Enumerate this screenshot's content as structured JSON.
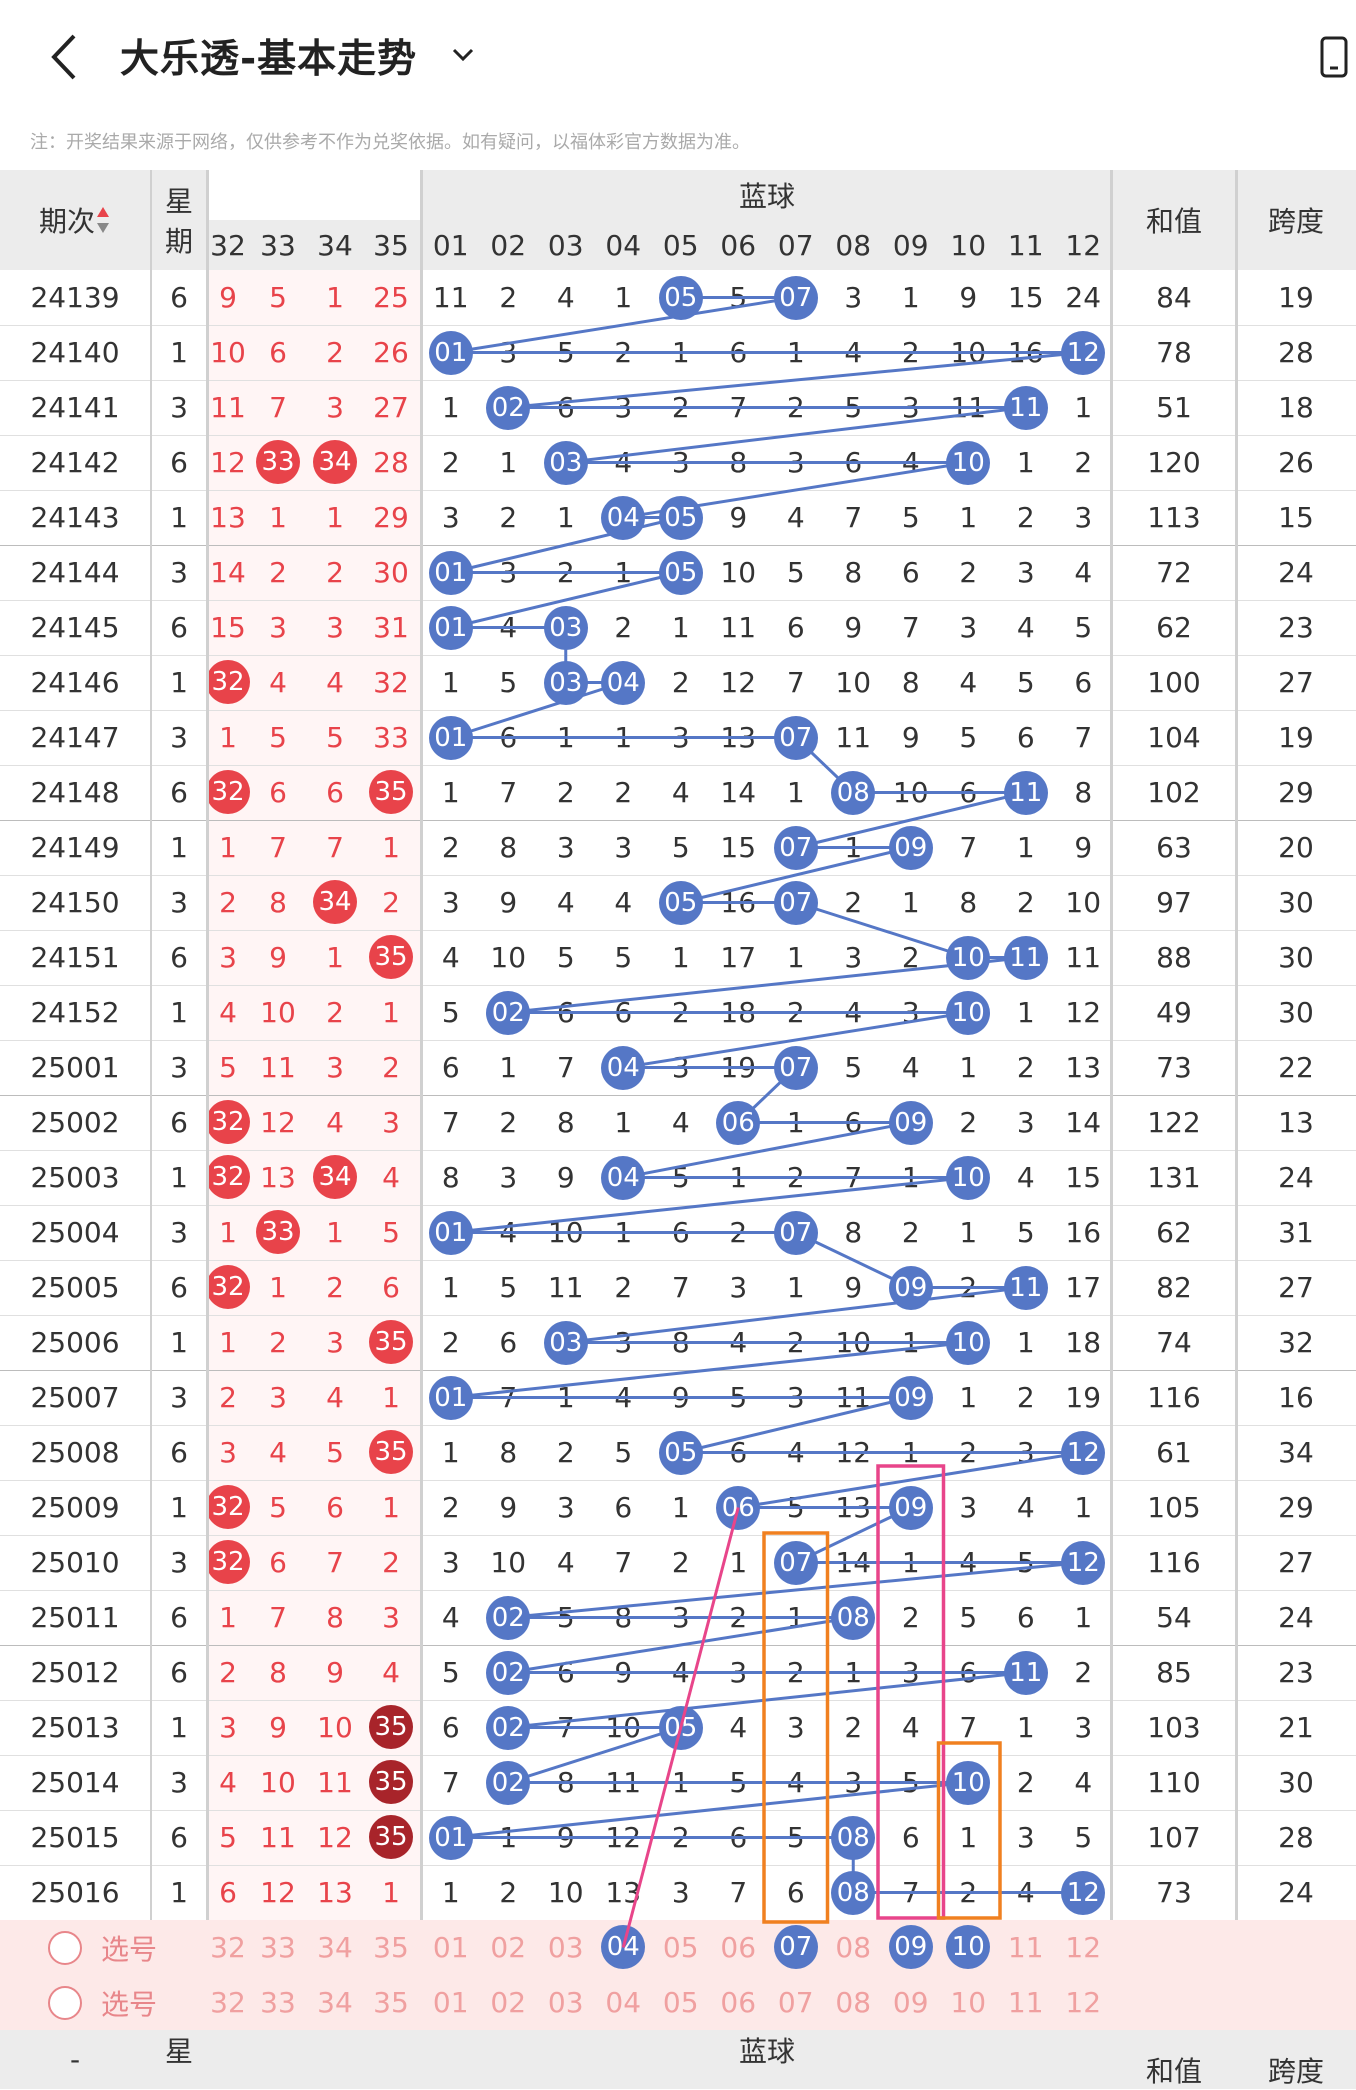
{
  "header": {
    "title": "大乐透-基本走势"
  },
  "note": "注：开奖结果来源于网络，仅供参考不作为兑奖依据。如有疑问，以福体彩官方数据为准。",
  "columns": {
    "period": "期次",
    "weekday_top": "星",
    "weekday_bottom": "期",
    "blue_title": "蓝球",
    "sum": "和值",
    "span": "跨度"
  },
  "front_headers": [
    "32",
    "33",
    "34",
    "35"
  ],
  "blue_headers": [
    "01",
    "02",
    "03",
    "04",
    "05",
    "06",
    "07",
    "08",
    "09",
    "10",
    "11",
    "12"
  ],
  "rows": [
    {
      "p": "24139",
      "w": "6",
      "f": [
        "9",
        "5",
        "1",
        "25"
      ],
      "fh": [],
      "b": [
        "11",
        "2",
        "4",
        "1",
        "05",
        "5",
        "07",
        "3",
        "1",
        "9",
        "15",
        "24"
      ],
      "bh": [
        5,
        7
      ],
      "sum": "84",
      "span": "19"
    },
    {
      "p": "24140",
      "w": "1",
      "f": [
        "10",
        "6",
        "2",
        "26"
      ],
      "fh": [],
      "b": [
        "01",
        "3",
        "5",
        "2",
        "1",
        "6",
        "1",
        "4",
        "2",
        "10",
        "16",
        "12"
      ],
      "bh": [
        1,
        12
      ],
      "sum": "78",
      "span": "28"
    },
    {
      "p": "24141",
      "w": "3",
      "f": [
        "11",
        "7",
        "3",
        "27"
      ],
      "fh": [],
      "b": [
        "1",
        "02",
        "6",
        "3",
        "2",
        "7",
        "2",
        "5",
        "3",
        "11",
        "11",
        "1"
      ],
      "bh": [
        2,
        11
      ],
      "sum": "51",
      "span": "18"
    },
    {
      "p": "24142",
      "w": "6",
      "f": [
        "12",
        "33",
        "34",
        "28"
      ],
      "fh": [
        2,
        3
      ],
      "b": [
        "2",
        "1",
        "03",
        "4",
        "3",
        "8",
        "3",
        "6",
        "4",
        "10",
        "1",
        "2"
      ],
      "bh": [
        3,
        10
      ],
      "sum": "120",
      "span": "26"
    },
    {
      "p": "24143",
      "w": "1",
      "f": [
        "13",
        "1",
        "1",
        "29"
      ],
      "fh": [],
      "b": [
        "3",
        "2",
        "1",
        "04",
        "05",
        "9",
        "4",
        "7",
        "5",
        "1",
        "2",
        "3"
      ],
      "bh": [
        4,
        5
      ],
      "sum": "113",
      "span": "15"
    },
    {
      "p": "24144",
      "w": "3",
      "f": [
        "14",
        "2",
        "2",
        "30"
      ],
      "fh": [],
      "b": [
        "01",
        "3",
        "2",
        "1",
        "05",
        "10",
        "5",
        "8",
        "6",
        "2",
        "3",
        "4"
      ],
      "bh": [
        1,
        5
      ],
      "sum": "72",
      "span": "24"
    },
    {
      "p": "24145",
      "w": "6",
      "f": [
        "15",
        "3",
        "3",
        "31"
      ],
      "fh": [],
      "b": [
        "01",
        "4",
        "03",
        "2",
        "1",
        "11",
        "6",
        "9",
        "7",
        "3",
        "4",
        "5"
      ],
      "bh": [
        1,
        3
      ],
      "sum": "62",
      "span": "23"
    },
    {
      "p": "24146",
      "w": "1",
      "f": [
        "32",
        "4",
        "4",
        "32"
      ],
      "fh": [
        1
      ],
      "b": [
        "1",
        "5",
        "03",
        "04",
        "2",
        "12",
        "7",
        "10",
        "8",
        "4",
        "5",
        "6"
      ],
      "bh": [
        3,
        4
      ],
      "sum": "100",
      "span": "27"
    },
    {
      "p": "24147",
      "w": "3",
      "f": [
        "1",
        "5",
        "5",
        "33"
      ],
      "fh": [],
      "b": [
        "01",
        "6",
        "1",
        "1",
        "3",
        "13",
        "07",
        "11",
        "9",
        "5",
        "6",
        "7"
      ],
      "bh": [
        1,
        7
      ],
      "sum": "104",
      "span": "19"
    },
    {
      "p": "24148",
      "w": "6",
      "f": [
        "32",
        "6",
        "6",
        "35"
      ],
      "fh": [
        1,
        4
      ],
      "b": [
        "1",
        "7",
        "2",
        "2",
        "4",
        "14",
        "1",
        "08",
        "10",
        "6",
        "11",
        "8"
      ],
      "bh": [
        8,
        11
      ],
      "sum": "102",
      "span": "29"
    },
    {
      "p": "24149",
      "w": "1",
      "f": [
        "1",
        "7",
        "7",
        "1"
      ],
      "fh": [],
      "b": [
        "2",
        "8",
        "3",
        "3",
        "5",
        "15",
        "07",
        "1",
        "09",
        "7",
        "1",
        "9"
      ],
      "bh": [
        7,
        9
      ],
      "sum": "63",
      "span": "20"
    },
    {
      "p": "24150",
      "w": "3",
      "f": [
        "2",
        "8",
        "34",
        "2"
      ],
      "fh": [
        3
      ],
      "b": [
        "3",
        "9",
        "4",
        "4",
        "05",
        "16",
        "07",
        "2",
        "1",
        "8",
        "2",
        "10"
      ],
      "bh": [
        5,
        7
      ],
      "sum": "97",
      "span": "30"
    },
    {
      "p": "24151",
      "w": "6",
      "f": [
        "3",
        "9",
        "1",
        "35"
      ],
      "fh": [
        4
      ],
      "b": [
        "4",
        "10",
        "5",
        "5",
        "1",
        "17",
        "1",
        "3",
        "2",
        "10",
        "11",
        "11"
      ],
      "bh": [
        10,
        11
      ],
      "sum": "88",
      "span": "30"
    },
    {
      "p": "24152",
      "w": "1",
      "f": [
        "4",
        "10",
        "2",
        "1"
      ],
      "fh": [],
      "b": [
        "5",
        "02",
        "6",
        "6",
        "2",
        "18",
        "2",
        "4",
        "3",
        "10",
        "1",
        "12"
      ],
      "bh": [
        2,
        10
      ],
      "sum": "49",
      "span": "30"
    },
    {
      "p": "25001",
      "w": "3",
      "f": [
        "5",
        "11",
        "3",
        "2"
      ],
      "fh": [],
      "b": [
        "6",
        "1",
        "7",
        "04",
        "3",
        "19",
        "07",
        "5",
        "4",
        "1",
        "2",
        "13"
      ],
      "bh": [
        4,
        7
      ],
      "sum": "73",
      "span": "22"
    },
    {
      "p": "25002",
      "w": "6",
      "f": [
        "32",
        "12",
        "4",
        "3"
      ],
      "fh": [
        1
      ],
      "b": [
        "7",
        "2",
        "8",
        "1",
        "4",
        "06",
        "1",
        "6",
        "09",
        "2",
        "3",
        "14"
      ],
      "bh": [
        6,
        9
      ],
      "sum": "122",
      "span": "13"
    },
    {
      "p": "25003",
      "w": "1",
      "f": [
        "32",
        "13",
        "34",
        "4"
      ],
      "fh": [
        1,
        3
      ],
      "b": [
        "8",
        "3",
        "9",
        "04",
        "5",
        "1",
        "2",
        "7",
        "1",
        "10",
        "4",
        "15"
      ],
      "bh": [
        4,
        10
      ],
      "sum": "131",
      "span": "24"
    },
    {
      "p": "25004",
      "w": "3",
      "f": [
        "1",
        "33",
        "1",
        "5"
      ],
      "fh": [
        2
      ],
      "b": [
        "01",
        "4",
        "10",
        "1",
        "6",
        "2",
        "07",
        "8",
        "2",
        "1",
        "5",
        "16"
      ],
      "bh": [
        1,
        7
      ],
      "sum": "62",
      "span": "31"
    },
    {
      "p": "25005",
      "w": "6",
      "f": [
        "32",
        "1",
        "2",
        "6"
      ],
      "fh": [
        1
      ],
      "b": [
        "1",
        "5",
        "11",
        "2",
        "7",
        "3",
        "1",
        "9",
        "09",
        "2",
        "11",
        "17"
      ],
      "bh": [
        9,
        11
      ],
      "sum": "82",
      "span": "27"
    },
    {
      "p": "25006",
      "w": "1",
      "f": [
        "1",
        "2",
        "3",
        "35"
      ],
      "fh": [
        4
      ],
      "b": [
        "2",
        "6",
        "03",
        "3",
        "8",
        "4",
        "2",
        "10",
        "1",
        "10",
        "1",
        "18"
      ],
      "bh": [
        3,
        10
      ],
      "sum": "74",
      "span": "32"
    },
    {
      "p": "25007",
      "w": "3",
      "f": [
        "2",
        "3",
        "4",
        "1"
      ],
      "fh": [],
      "b": [
        "01",
        "7",
        "1",
        "4",
        "9",
        "5",
        "3",
        "11",
        "09",
        "1",
        "2",
        "19"
      ],
      "bh": [
        1,
        9
      ],
      "sum": "116",
      "span": "16"
    },
    {
      "p": "25008",
      "w": "6",
      "f": [
        "3",
        "4",
        "5",
        "35"
      ],
      "fh": [
        4
      ],
      "b": [
        "1",
        "8",
        "2",
        "5",
        "05",
        "6",
        "4",
        "12",
        "1",
        "2",
        "3",
        "12"
      ],
      "bh": [
        5,
        12
      ],
      "sum": "61",
      "span": "34"
    },
    {
      "p": "25009",
      "w": "1",
      "f": [
        "32",
        "5",
        "6",
        "1"
      ],
      "fh": [
        1
      ],
      "b": [
        "2",
        "9",
        "3",
        "6",
        "1",
        "06",
        "5",
        "13",
        "09",
        "3",
        "4",
        "1"
      ],
      "bh": [
        6,
        9
      ],
      "sum": "105",
      "span": "29"
    },
    {
      "p": "25010",
      "w": "3",
      "f": [
        "32",
        "6",
        "7",
        "2"
      ],
      "fh": [
        1
      ],
      "b": [
        "3",
        "10",
        "4",
        "7",
        "2",
        "1",
        "07",
        "14",
        "1",
        "4",
        "5",
        "12"
      ],
      "bh": [
        7,
        12
      ],
      "sum": "116",
      "span": "27"
    },
    {
      "p": "25011",
      "w": "6",
      "f": [
        "1",
        "7",
        "8",
        "3"
      ],
      "fh": [],
      "b": [
        "4",
        "02",
        "5",
        "8",
        "3",
        "2",
        "1",
        "08",
        "2",
        "5",
        "6",
        "1"
      ],
      "bh": [
        2,
        8
      ],
      "sum": "54",
      "span": "24"
    },
    {
      "p": "25012",
      "w": "6",
      "f": [
        "2",
        "8",
        "9",
        "4"
      ],
      "fh": [],
      "b": [
        "5",
        "02",
        "6",
        "9",
        "4",
        "3",
        "2",
        "1",
        "3",
        "6",
        "11",
        "2"
      ],
      "bh": [
        2,
        11
      ],
      "sum": "85",
      "span": "23"
    },
    {
      "p": "25013",
      "w": "1",
      "f": [
        "3",
        "9",
        "10",
        "35"
      ],
      "fh": [
        4
      ],
      "fd": true,
      "b": [
        "6",
        "02",
        "7",
        "10",
        "05",
        "4",
        "3",
        "2",
        "4",
        "7",
        "1",
        "3"
      ],
      "bh": [
        2,
        5
      ],
      "sum": "103",
      "span": "21"
    },
    {
      "p": "25014",
      "w": "3",
      "f": [
        "4",
        "10",
        "11",
        "35"
      ],
      "fh": [
        4
      ],
      "fd": true,
      "b": [
        "7",
        "02",
        "8",
        "11",
        "1",
        "5",
        "4",
        "3",
        "5",
        "10",
        "2",
        "4"
      ],
      "bh": [
        2,
        10
      ],
      "sum": "110",
      "span": "30"
    },
    {
      "p": "25015",
      "w": "6",
      "f": [
        "5",
        "11",
        "12",
        "35"
      ],
      "fh": [
        4
      ],
      "fd": true,
      "b": [
        "01",
        "1",
        "9",
        "12",
        "2",
        "6",
        "5",
        "08",
        "6",
        "1",
        "3",
        "5"
      ],
      "bh": [
        1,
        8
      ],
      "sum": "107",
      "span": "28"
    },
    {
      "p": "25016",
      "w": "1",
      "f": [
        "6",
        "12",
        "13",
        "1"
      ],
      "fh": [],
      "b": [
        "1",
        "2",
        "10",
        "13",
        "3",
        "7",
        "6",
        "08",
        "7",
        "2",
        "4",
        "12"
      ],
      "bh": [
        8,
        12
      ],
      "sum": "73",
      "span": "24"
    }
  ],
  "select": {
    "label": "选号",
    "front": [
      "32",
      "33",
      "34",
      "35"
    ],
    "blue": [
      "01",
      "02",
      "03",
      "04",
      "05",
      "06",
      "07",
      "08",
      "09",
      "10",
      "11",
      "12"
    ],
    "picked": [
      4,
      7,
      9,
      10
    ]
  },
  "colors": {
    "blue_ball": "#5577c6",
    "red": "#e8434a",
    "dark_red": "#a8242a",
    "pink": "#e8458a",
    "orange": "#f08020",
    "header_bg": "#ececec",
    "select_bg": "#fde9e8"
  }
}
